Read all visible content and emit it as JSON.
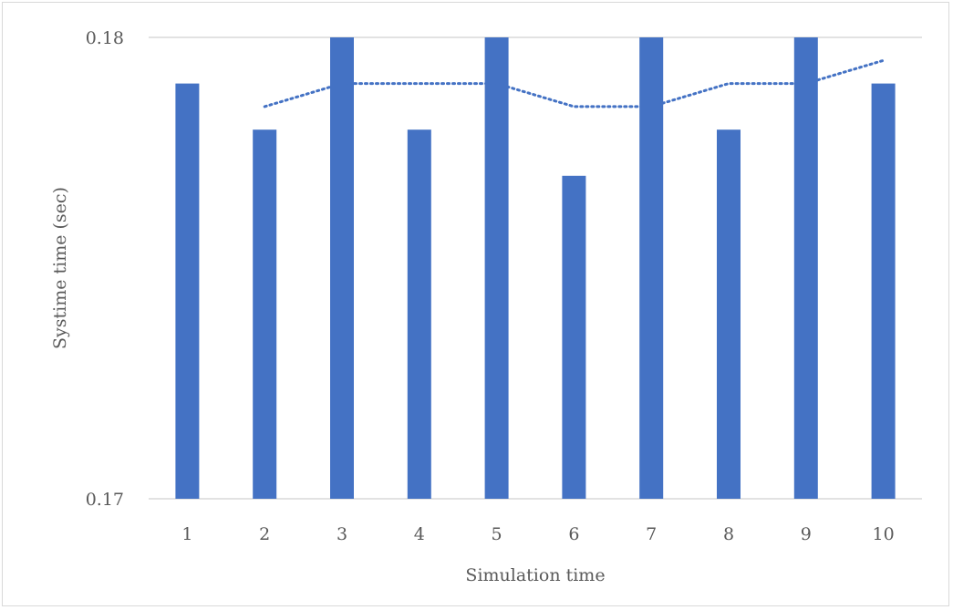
{
  "chart_data": {
    "type": "bar",
    "title": "",
    "xlabel": "Simulation time",
    "ylabel": "Systime time (sec)",
    "categories": [
      "1",
      "2",
      "3",
      "4",
      "5",
      "6",
      "7",
      "8",
      "9",
      "10"
    ],
    "series": [
      {
        "values": [
          0.179,
          0.178,
          0.18,
          0.178,
          0.18,
          0.177,
          0.18,
          0.178,
          0.18,
          0.179
        ],
        "color": "#4472C4"
      }
    ],
    "trendline": {
      "style": "dotted",
      "kind": "2-period moving average",
      "values": [
        null,
        0.1785,
        0.179,
        0.179,
        0.179,
        0.1785,
        0.1785,
        0.179,
        0.179,
        0.1795
      ],
      "color": "#4472C4"
    },
    "ylim": [
      0.17,
      0.18
    ],
    "yticks": [
      "0.17",
      "0.18"
    ],
    "grid": true,
    "legend": "none"
  }
}
